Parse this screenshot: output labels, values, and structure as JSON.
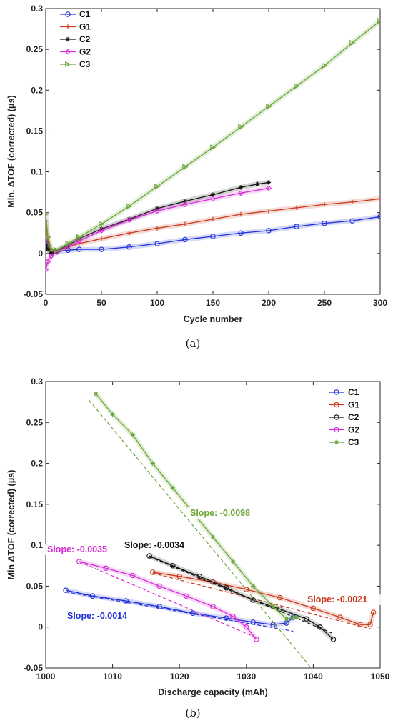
{
  "panels": [
    {
      "caption": "(a)",
      "chart_data": {
        "type": "line",
        "xlabel": "Cycle number",
        "ylabel": "Min. ΔTOF (corrected) (μs)",
        "xlim": [
          0,
          300
        ],
        "ylim": [
          -0.05,
          0.3
        ],
        "xticks": [
          0,
          50,
          100,
          150,
          200,
          250,
          300
        ],
        "yticks": [
          -0.05,
          0,
          0.05,
          0.1,
          0.15,
          0.2,
          0.25,
          0.3
        ],
        "ytick_labels": [
          "-0.05",
          "0",
          "0.05",
          "0.1",
          "0.15",
          "0.2",
          "0.25",
          "0.3"
        ],
        "grid": false,
        "legend_position": "top-left",
        "series": [
          {
            "name": "C1",
            "color": "#1f2fd6",
            "marker": "circle",
            "x": [
              0,
              2,
              5,
              10,
              20,
              30,
              50,
              75,
              100,
              125,
              150,
              175,
              200,
              225,
              250,
              275,
              300
            ],
            "y": [
              0.02,
              0.01,
              0.003,
              0.002,
              0.004,
              0.005,
              0.005,
              0.008,
              0.012,
              0.017,
              0.021,
              0.025,
              0.028,
              0.033,
              0.037,
              0.04,
              0.045
            ]
          },
          {
            "name": "G1",
            "color": "#c8391c",
            "marker": "plus",
            "x": [
              0,
              2,
              5,
              10,
              20,
              30,
              50,
              75,
              100,
              125,
              150,
              175,
              200,
              225,
              250,
              275,
              300
            ],
            "y": [
              0.04,
              0.015,
              0.002,
              0.003,
              0.008,
              0.012,
              0.018,
              0.025,
              0.031,
              0.036,
              0.042,
              0.048,
              0.052,
              0.056,
              0.06,
              0.063,
              0.067
            ]
          },
          {
            "name": "C2",
            "color": "#111111",
            "marker": "star",
            "x": [
              0,
              2,
              5,
              10,
              20,
              30,
              50,
              75,
              100,
              125,
              150,
              175,
              190,
              200
            ],
            "y": [
              0.01,
              0.005,
              0.0,
              0.003,
              0.01,
              0.018,
              0.03,
              0.042,
              0.055,
              0.064,
              0.072,
              0.081,
              0.085,
              0.087
            ]
          },
          {
            "name": "G2",
            "color": "#d62bd6",
            "marker": "diamond",
            "x": [
              0,
              2,
              5,
              10,
              20,
              30,
              50,
              75,
              100,
              125,
              150,
              175,
              200
            ],
            "y": [
              -0.02,
              -0.01,
              -0.003,
              0.002,
              0.009,
              0.015,
              0.028,
              0.041,
              0.052,
              0.06,
              0.067,
              0.074,
              0.08
            ]
          },
          {
            "name": "C3",
            "color": "#6aa535",
            "marker": "triangle",
            "x": [
              0,
              2,
              5,
              10,
              20,
              30,
              50,
              75,
              100,
              125,
              150,
              175,
              200,
              225,
              250,
              275,
              300
            ],
            "y": [
              0.048,
              0.02,
              0.005,
              0.004,
              0.012,
              0.02,
              0.036,
              0.058,
              0.082,
              0.106,
              0.13,
              0.155,
              0.18,
              0.205,
              0.23,
              0.258,
              0.285
            ]
          }
        ]
      }
    },
    {
      "caption": "(b)",
      "chart_data": {
        "type": "scatter",
        "xlabel": "Discharge capacity (mAh)",
        "ylabel": "Min ΔTOF (corrected) (μs)",
        "xlim": [
          1000,
          1050
        ],
        "ylim": [
          -0.05,
          0.3
        ],
        "xticks": [
          1000,
          1010,
          1020,
          1030,
          1040,
          1050
        ],
        "yticks": [
          -0.05,
          0,
          0.05,
          0.1,
          0.15,
          0.2,
          0.25,
          0.3
        ],
        "ytick_labels": [
          "-0.05",
          "0",
          "0.05",
          "0.1",
          "0.15",
          "0.2",
          "0.25",
          "0.3"
        ],
        "grid": false,
        "legend_position": "top-right",
        "series": [
          {
            "name": "C1",
            "color": "#1f2fd6",
            "marker": "circle",
            "x": [
              1003,
              1007,
              1012,
              1017,
              1022,
              1027,
              1031,
              1034,
              1036,
              1037
            ],
            "y": [
              0.045,
              0.038,
              0.032,
              0.025,
              0.017,
              0.011,
              0.006,
              0.003,
              0.005,
              0.012
            ],
            "fit": {
              "x": [
                1003,
                1037
              ],
              "y": [
                0.043,
                -0.005
              ]
            }
          },
          {
            "name": "G1",
            "color": "#c8391c",
            "marker": "circle",
            "x": [
              1016,
              1020,
              1025,
              1030,
              1035,
              1040,
              1044,
              1047,
              1048.5,
              1049
            ],
            "y": [
              0.067,
              0.062,
              0.055,
              0.046,
              0.036,
              0.023,
              0.012,
              0.003,
              0.003,
              0.018
            ],
            "fit": {
              "x": [
                1016,
                1049
              ],
              "y": [
                0.066,
                -0.003
              ]
            }
          },
          {
            "name": "C2",
            "color": "#111111",
            "marker": "circle",
            "x": [
              1015.5,
              1019,
              1023,
              1027,
              1031,
              1035,
              1039,
              1041,
              1043
            ],
            "y": [
              0.087,
              0.075,
              0.062,
              0.048,
              0.033,
              0.022,
              0.01,
              0.0,
              -0.015
            ],
            "fit": {
              "x": [
                1015.5,
                1043
              ],
              "y": [
                0.086,
                -0.008
              ]
            }
          },
          {
            "name": "G2",
            "color": "#d62bd6",
            "marker": "circle",
            "x": [
              1005,
              1009,
              1013,
              1017,
              1021,
              1025,
              1028,
              1030,
              1031.5
            ],
            "y": [
              0.08,
              0.072,
              0.063,
              0.05,
              0.038,
              0.025,
              0.013,
              0.0,
              -0.015
            ],
            "fit": {
              "x": [
                1005,
                1031.5
              ],
              "y": [
                0.08,
                -0.013
              ]
            }
          },
          {
            "name": "C3",
            "color": "#6aa535",
            "marker": "star",
            "x": [
              1007.5,
              1010,
              1013,
              1016,
              1019,
              1022,
              1025,
              1028,
              1031,
              1034,
              1036,
              1037.5
            ],
            "y": [
              0.285,
              0.26,
              0.235,
              0.2,
              0.17,
              0.14,
              0.11,
              0.08,
              0.05,
              0.025,
              0.01,
              0.012
            ],
            "fit": {
              "x": [
                1006.5,
                1039.5
              ],
              "y": [
                0.277,
                -0.048
              ]
            }
          }
        ],
        "annotations": [
          {
            "text": "Slope: -0.0098",
            "color": "#6aa535"
          },
          {
            "text": "Slope: -0.0034",
            "color": "#111111"
          },
          {
            "text": "Slope: -0.0035",
            "color": "#d62bd6"
          },
          {
            "text": "Slope: -0.0021",
            "color": "#c8391c"
          },
          {
            "text": "Slope: -0.0014",
            "color": "#1f2fd6"
          }
        ]
      }
    }
  ]
}
